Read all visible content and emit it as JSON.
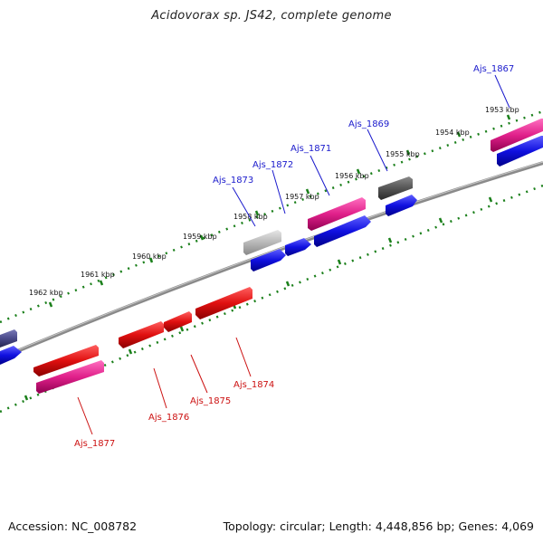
{
  "title": "Acidovorax sp. JS42, complete genome",
  "footer": {
    "accession": "Accession: NC_008782",
    "summary": "Topology: circular; Length: 4,448,856 bp; Genes: 4,069"
  },
  "colors": {
    "backbone": "#7a7a7a",
    "tick": "#1a7f1a",
    "blue_gene": "#1010e0",
    "red_gene": "#e01010",
    "pink_gene": "#e0208a",
    "grey_gene": "#555555",
    "lightgrey_gene": "#b8b8b8",
    "slate_gene": "#4a4a8a",
    "label_top": "#1a1acc",
    "label_bottom": "#cc1111"
  },
  "kbp_ticks": [
    "1953 kbp",
    "1954 kbp",
    "1955 kbp",
    "1956 kbp",
    "1957 kbp",
    "1958 kbp",
    "1959 kbp",
    "1960 kbp",
    "1961 kbp",
    "1962 kbp"
  ],
  "gene_labels_top": [
    "Ajs_1867",
    "Ajs_1869",
    "Ajs_1871",
    "Ajs_1872",
    "Ajs_1873"
  ],
  "gene_labels_bottom": [
    "Ajs_1874",
    "Ajs_1875",
    "Ajs_1876",
    "Ajs_1877"
  ]
}
